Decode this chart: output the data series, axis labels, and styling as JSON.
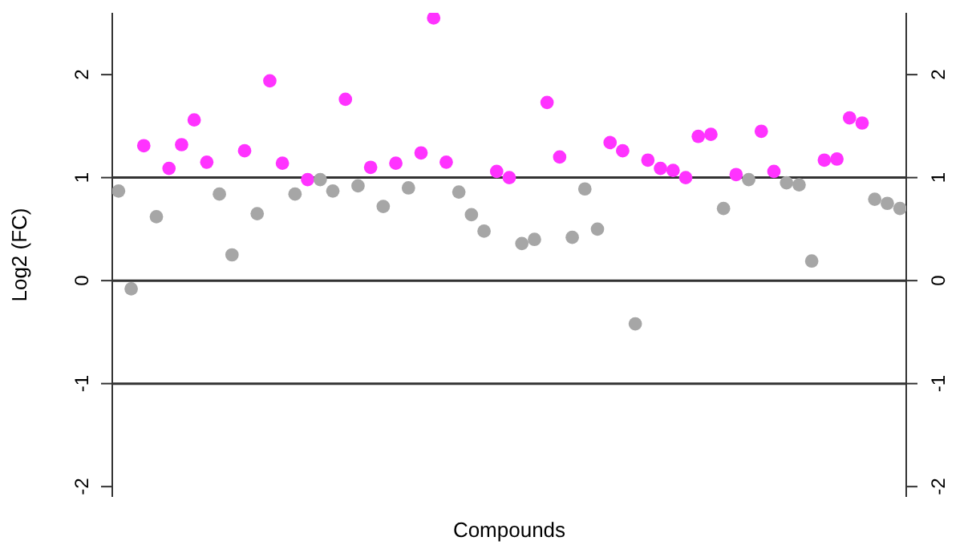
{
  "chart_data": {
    "type": "scatter",
    "xlabel": "Compounds",
    "ylabel": "Log2 (FC)",
    "categories": [
      null,
      null,
      null,
      null,
      null,
      null,
      null,
      null,
      null,
      null,
      null,
      null,
      null,
      null,
      null,
      null,
      null,
      null,
      null,
      null,
      null,
      null,
      null,
      null,
      null,
      null,
      null,
      null,
      null,
      null,
      null,
      null,
      null,
      null,
      null,
      null,
      null,
      null,
      null,
      null,
      null,
      null,
      null,
      null,
      null,
      null,
      null,
      null,
      null,
      null,
      null,
      null,
      null,
      null,
      null,
      null,
      null,
      null,
      null,
      null,
      null,
      null,
      null
    ],
    "series": [
      {
        "color": "#ff33ff",
        "values": [
          null,
          null,
          1.31,
          null,
          1.09,
          1.32,
          1.56,
          1.15,
          null,
          null,
          1.26,
          null,
          1.94,
          1.14,
          null,
          0.98,
          null,
          null,
          1.76,
          null,
          1.1,
          null,
          1.14,
          null,
          1.24,
          2.55,
          1.15,
          null,
          null,
          null,
          1.06,
          1.0,
          null,
          null,
          1.73,
          1.2,
          null,
          null,
          null,
          1.34,
          1.26,
          null,
          1.17,
          1.09,
          1.07,
          1.0,
          1.4,
          1.42,
          null,
          1.03,
          null,
          1.45,
          1.06,
          null,
          null,
          null,
          1.17,
          1.18,
          1.58,
          1.53,
          null,
          null,
          null
        ]
      },
      {
        "color": "#a6a6a6",
        "values": [
          0.87,
          -0.08,
          null,
          0.62,
          null,
          null,
          null,
          null,
          0.84,
          0.25,
          null,
          0.65,
          null,
          null,
          0.84,
          null,
          0.98,
          0.87,
          null,
          0.92,
          null,
          0.72,
          null,
          0.9,
          null,
          null,
          null,
          0.86,
          0.64,
          0.48,
          null,
          null,
          0.36,
          0.4,
          null,
          null,
          0.42,
          0.89,
          0.5,
          null,
          null,
          -0.42,
          null,
          null,
          null,
          null,
          null,
          null,
          0.7,
          null,
          0.98,
          null,
          null,
          0.95,
          0.93,
          0.19,
          null,
          null,
          null,
          null,
          0.79,
          0.75,
          0.7
        ]
      }
    ],
    "ylim": [
      -2.1,
      2.6
    ],
    "yticks": [
      -2,
      -1,
      0,
      1,
      2
    ],
    "y2lim": [
      -2.1,
      2.6
    ],
    "y2ticks": [
      -2,
      -1,
      0,
      1,
      2
    ],
    "ref_lines": [
      {
        "axis": "y",
        "value": 1
      },
      {
        "axis": "y",
        "value": 0
      },
      {
        "axis": "y",
        "value": -1
      }
    ],
    "tick_labels": "y",
    "grid": false,
    "marker": "circle"
  }
}
